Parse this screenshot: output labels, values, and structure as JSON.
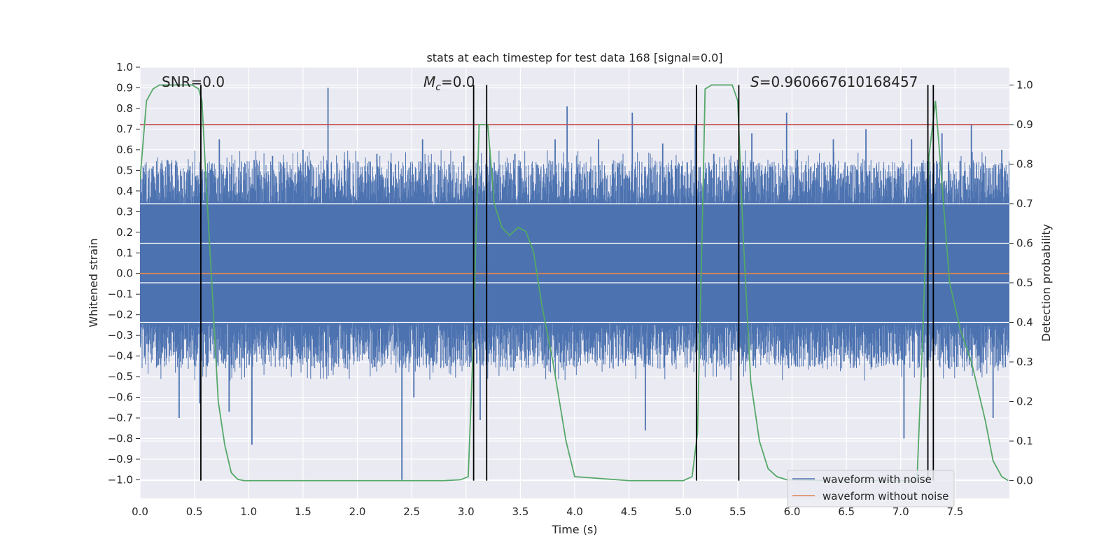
{
  "chart_data": {
    "type": "line",
    "title": "stats at each timestep for test data 168 [signal=0.0]",
    "xlabel": "Time (s)",
    "ylabel": "Whitened strain",
    "y2label": "Detection probability",
    "xlim": [
      0.0,
      8.0
    ],
    "ylim": [
      -1.09,
      1.0
    ],
    "y2lim": [
      -0.045,
      1.045
    ],
    "x_ticks": [
      0.0,
      0.5,
      1.0,
      1.5,
      2.0,
      2.5,
      3.0,
      3.5,
      4.0,
      4.5,
      5.0,
      5.5,
      6.0,
      6.5,
      7.0,
      7.5
    ],
    "x_tick_labels": [
      "0.0",
      "0.5",
      "1.0",
      "1.5",
      "2.0",
      "2.5",
      "3.0",
      "3.5",
      "4.0",
      "4.5",
      "5.0",
      "5.5",
      "6.0",
      "6.5",
      "7.0",
      "7.5"
    ],
    "y_ticks": [
      1.0,
      0.9,
      0.8,
      0.7,
      0.6,
      0.5,
      0.4,
      0.3,
      0.2,
      0.1,
      0.0,
      -0.1,
      -0.2,
      -0.3,
      -0.4,
      -0.5,
      -0.6,
      -0.7,
      -0.8,
      -0.9,
      -1.0
    ],
    "y_tick_labels": [
      "1.0",
      "0.9",
      "0.8",
      "0.7",
      "0.6",
      "0.5",
      "0.4",
      "0.3",
      "0.2",
      "0.1",
      "0.0",
      "−0.1",
      "−0.2",
      "−0.3",
      "−0.4",
      "−0.5",
      "−0.6",
      "−0.7",
      "−0.8",
      "−0.9",
      "−1.0"
    ],
    "y2_ticks": [
      1.0,
      0.9,
      0.8,
      0.7,
      0.6,
      0.5,
      0.4,
      0.3,
      0.2,
      0.1,
      0.0
    ],
    "y2_tick_labels": [
      "1.0",
      "0.9",
      "0.8",
      "0.7",
      "0.6",
      "0.5",
      "0.4",
      "0.3",
      "0.2",
      "0.1",
      "0.0"
    ],
    "grid": true,
    "legend_position": "bottom-right",
    "annotations": {
      "snr": "SNR=0.0",
      "mc_symbol": "M",
      "mc_sub": "c",
      "mc_value": "=0.0",
      "s_symbol": "S",
      "s_value": "=0.960667610168457"
    },
    "series": [
      {
        "name": "waveform with noise",
        "color": "#4c72b0",
        "noise_band": [
          -0.24,
          0.33
        ],
        "spikes": [
          {
            "x": 0.05,
            "y": 0.48
          },
          {
            "x": 0.12,
            "y": 0.52
          },
          {
            "x": 0.25,
            "y": 0.55
          },
          {
            "x": 0.36,
            "y": -0.7
          },
          {
            "x": 0.46,
            "y": 0.52
          },
          {
            "x": 0.55,
            "y": -0.63
          },
          {
            "x": 0.66,
            "y": 0.53
          },
          {
            "x": 0.73,
            "y": 0.65
          },
          {
            "x": 0.82,
            "y": -0.67
          },
          {
            "x": 1.03,
            "y": -0.83
          },
          {
            "x": 1.05,
            "y": 0.55
          },
          {
            "x": 1.22,
            "y": 0.57
          },
          {
            "x": 1.5,
            "y": 0.6
          },
          {
            "x": 1.73,
            "y": 0.9
          },
          {
            "x": 1.88,
            "y": 0.55
          },
          {
            "x": 2.18,
            "y": 0.58
          },
          {
            "x": 2.35,
            "y": 0.53
          },
          {
            "x": 2.41,
            "y": -1.0
          },
          {
            "x": 2.52,
            "y": -0.6
          },
          {
            "x": 2.6,
            "y": 0.65
          },
          {
            "x": 2.98,
            "y": 0.57
          },
          {
            "x": 3.13,
            "y": -0.71
          },
          {
            "x": 3.22,
            "y": 0.6
          },
          {
            "x": 3.45,
            "y": 0.58
          },
          {
            "x": 3.82,
            "y": 0.65
          },
          {
            "x": 3.93,
            "y": 0.81
          },
          {
            "x": 4.22,
            "y": 0.65
          },
          {
            "x": 4.53,
            "y": 0.78
          },
          {
            "x": 4.65,
            "y": -0.76
          },
          {
            "x": 4.81,
            "y": 0.63
          },
          {
            "x": 5.11,
            "y": 0.72
          },
          {
            "x": 5.28,
            "y": 0.58
          },
          {
            "x": 5.63,
            "y": 0.68
          },
          {
            "x": 5.95,
            "y": 0.78
          },
          {
            "x": 6.05,
            "y": 0.6
          },
          {
            "x": 6.38,
            "y": 0.65
          },
          {
            "x": 6.68,
            "y": 0.7
          },
          {
            "x": 7.03,
            "y": -0.8
          },
          {
            "x": 7.1,
            "y": 0.65
          },
          {
            "x": 7.38,
            "y": 0.68
          },
          {
            "x": 7.65,
            "y": 0.72
          },
          {
            "x": 7.85,
            "y": -0.7
          },
          {
            "x": 7.93,
            "y": 0.6
          }
        ]
      },
      {
        "name": "waveform without noise",
        "color": "#dd8452",
        "x": [
          0.0,
          8.0
        ],
        "y": [
          0.0,
          0.0
        ]
      },
      {
        "name": "",
        "color": "#55a868",
        "axis": "right",
        "x": [
          0.0,
          0.06,
          0.12,
          0.18,
          0.24,
          0.3,
          0.36,
          0.42,
          0.48,
          0.54,
          0.57,
          0.6,
          0.66,
          0.72,
          0.78,
          0.84,
          0.9,
          0.96,
          1.0,
          1.5,
          2.0,
          2.5,
          2.8,
          2.95,
          3.02,
          3.06,
          3.12,
          3.2,
          3.26,
          3.33,
          3.4,
          3.48,
          3.55,
          3.62,
          3.7,
          3.8,
          3.92,
          4.0,
          4.5,
          5.0,
          5.08,
          5.13,
          5.18,
          5.2,
          5.26,
          5.3,
          5.45,
          5.5,
          5.55,
          5.62,
          5.7,
          5.78,
          5.86,
          5.95,
          6.5,
          7.0,
          7.15,
          7.2,
          7.26,
          7.32,
          7.38,
          7.45,
          7.55,
          7.65,
          7.78,
          7.85,
          7.93,
          7.99
        ],
        "y": [
          0.76,
          0.96,
          0.99,
          1.0,
          1.0,
          1.0,
          1.0,
          1.0,
          1.0,
          0.99,
          0.96,
          0.8,
          0.5,
          0.2,
          0.09,
          0.02,
          0.003,
          0.0,
          0.0,
          0.0,
          0.0,
          0.0,
          0.0,
          0.002,
          0.01,
          0.3,
          0.9,
          0.9,
          0.7,
          0.64,
          0.62,
          0.64,
          0.63,
          0.58,
          0.44,
          0.3,
          0.1,
          0.01,
          0.0,
          0.0,
          0.01,
          0.12,
          0.72,
          0.99,
          1.0,
          1.0,
          1.0,
          0.96,
          0.62,
          0.25,
          0.1,
          0.03,
          0.01,
          0.002,
          0.0,
          0.0,
          0.0,
          0.35,
          0.82,
          0.96,
          0.75,
          0.5,
          0.38,
          0.3,
          0.15,
          0.05,
          0.01,
          0.0
        ]
      }
    ],
    "hlines": [
      {
        "axis": "right",
        "y": 0.9,
        "color": "#c44e52"
      }
    ],
    "vlines": [
      0.56,
      3.07,
      3.19,
      5.12,
      5.51,
      7.25,
      7.3
    ]
  }
}
